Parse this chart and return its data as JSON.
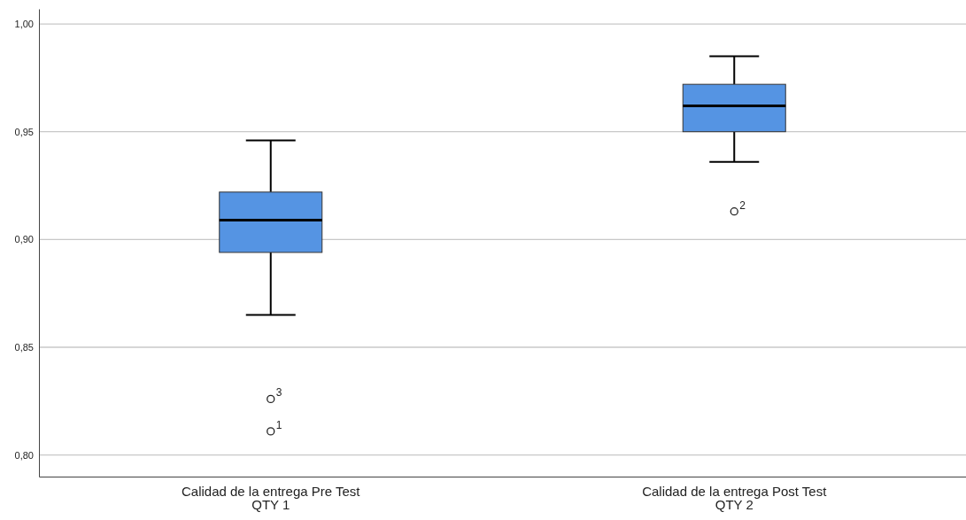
{
  "chart_data": {
    "type": "box",
    "categories": [
      "Calidad de la entrega Pre Test\nQTY 1",
      "Calidad de la entrega Post Test\nQTY 2"
    ],
    "boxes": [
      {
        "low": 0.865,
        "q1": 0.894,
        "median": 0.909,
        "q3": 0.922,
        "high": 0.946,
        "outliers": [
          0.826,
          0.811
        ]
      },
      {
        "low": 0.936,
        "q1": 0.95,
        "median": 0.962,
        "q3": 0.972,
        "high": 0.985,
        "outliers": [
          0.913
        ]
      }
    ],
    "color": "#5594e3",
    "ylim": [
      0.79,
      1.007
    ],
    "yticks": [
      {
        "value": 0.8,
        "label": "0,80"
      },
      {
        "value": 0.85,
        "label": "0,85"
      },
      {
        "value": 0.9,
        "label": "0,90"
      },
      {
        "value": 0.95,
        "label": "0,95"
      },
      {
        "value": 1.0,
        "label": "1,00"
      }
    ],
    "grid": "y",
    "annotations": [
      "3",
      "1",
      "2"
    ]
  }
}
